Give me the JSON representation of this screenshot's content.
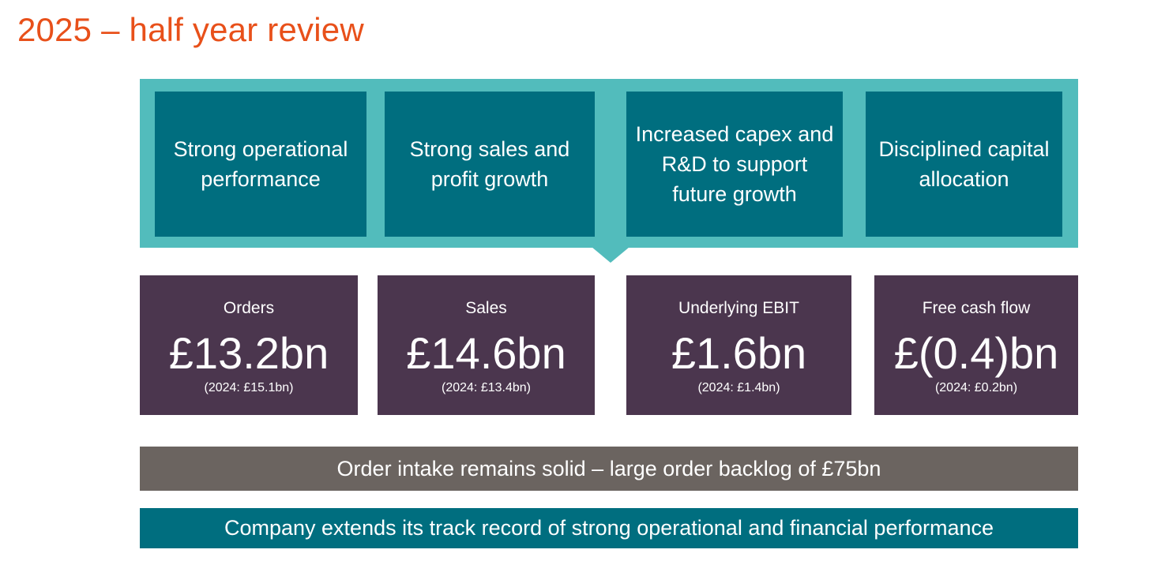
{
  "title": "2025 – half year review",
  "themes": [
    "Strong operational performance",
    "Strong sales and profit growth",
    "Increased capex and R&D to support future growth",
    "Disciplined capital allocation"
  ],
  "kpis": [
    {
      "label": "Orders",
      "value": "£13.2bn",
      "prior": "(2024: £15.1bn)"
    },
    {
      "label": "Sales",
      "value": "£14.6bn",
      "prior": "(2024: £13.4bn)"
    },
    {
      "label": "Underlying EBIT",
      "value": "£1.6bn",
      "prior": "(2024: £1.4bn)"
    },
    {
      "label": "Free cash flow",
      "value": "£(0.4)bn",
      "prior": "(2024: £0.2bn)"
    }
  ],
  "banner_backlog": "Order intake remains solid – large order backlog of £75bn",
  "banner_track_record": "Company extends its track record of strong operational and financial performance",
  "colors": {
    "title": "#e8501a",
    "band": "#52bcbc",
    "theme_box": "#006e7f",
    "kpi_box": "#4b364e",
    "grey_bar": "#6b6460"
  }
}
